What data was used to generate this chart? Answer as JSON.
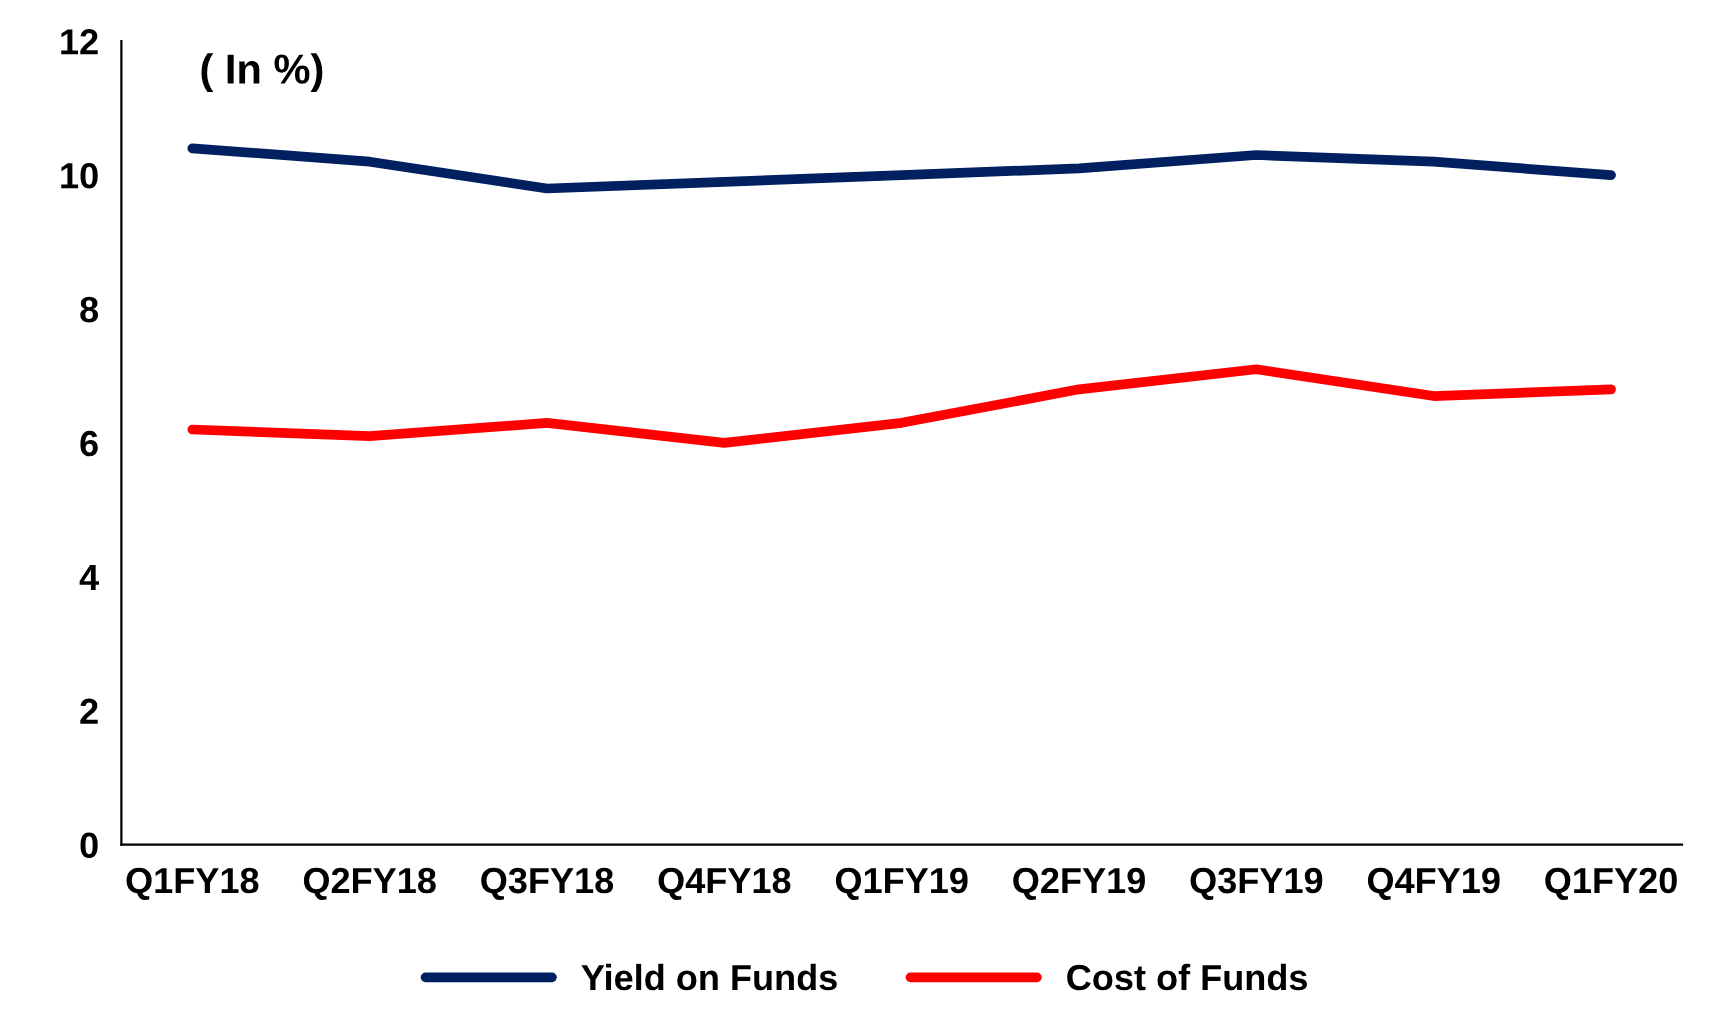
{
  "chart_data": {
    "type": "line",
    "annotations": [
      "( In %)"
    ],
    "categories": [
      "Q1FY18",
      "Q2FY18",
      "Q3FY18",
      "Q4FY18",
      "Q1FY19",
      "Q2FY19",
      "Q3FY19",
      "Q4FY19",
      "Q1FY20"
    ],
    "series": [
      {
        "name": "Yield on Funds",
        "color": "#002060",
        "values": [
          10.4,
          10.2,
          9.8,
          9.9,
          10.0,
          10.1,
          10.3,
          10.2,
          10.0
        ]
      },
      {
        "name": "Cost of Funds",
        "color": "#ff0000",
        "values": [
          6.2,
          6.1,
          6.3,
          6.0,
          6.3,
          6.8,
          7.1,
          6.7,
          6.8
        ]
      }
    ],
    "ylim": [
      0,
      12
    ],
    "yticks": [
      0,
      2,
      4,
      6,
      8,
      10,
      12
    ],
    "grid": false,
    "legend": "bottom",
    "marker": "none",
    "line_style": "solid"
  }
}
